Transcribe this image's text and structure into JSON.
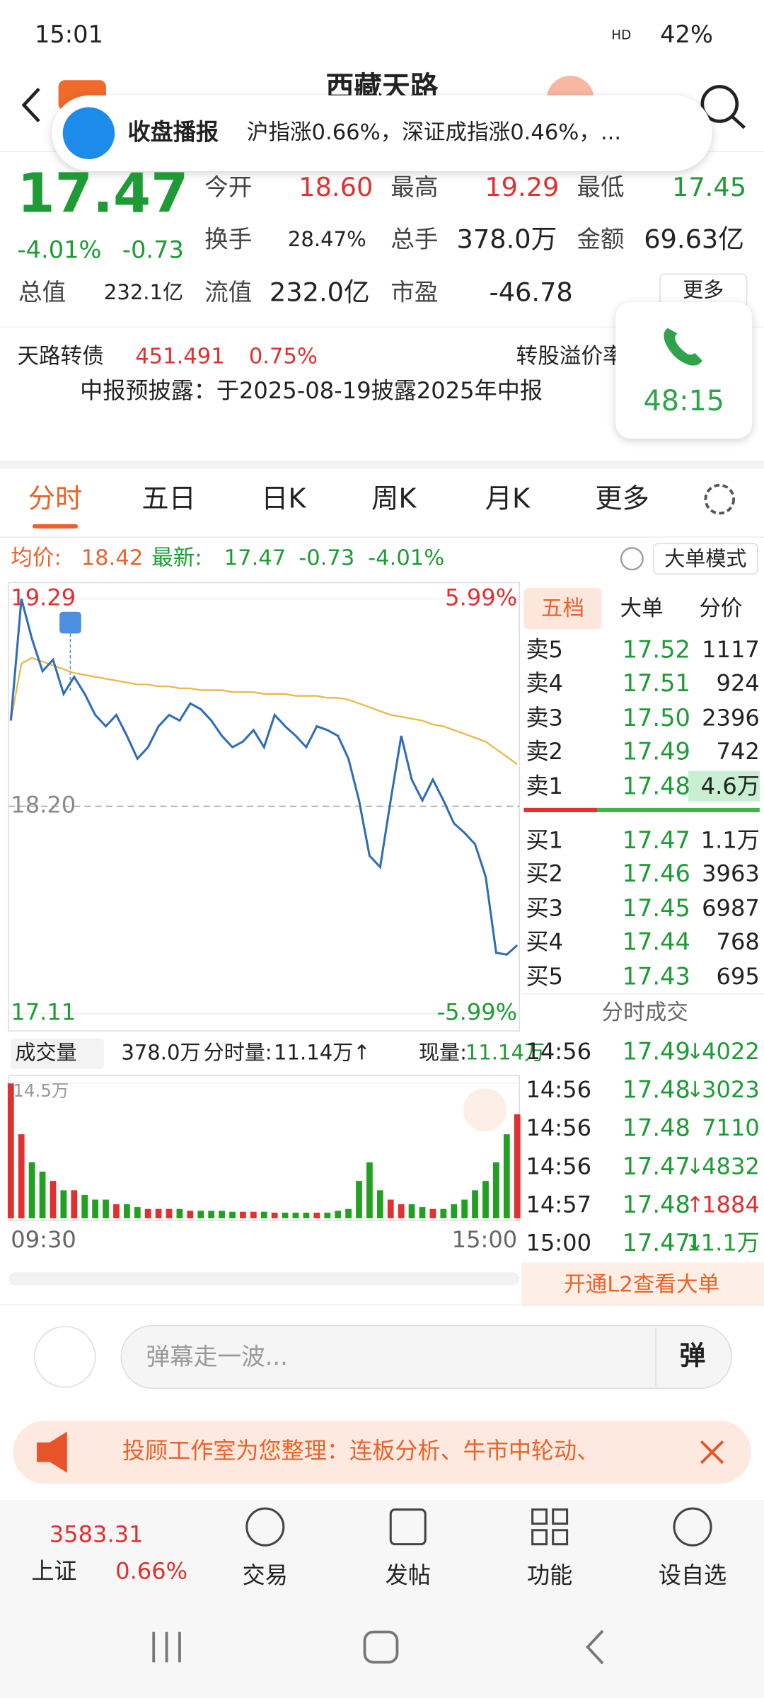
{
  "status_bar": {
    "time": "15:01",
    "network": "HD",
    "battery": "42%"
  },
  "header": {
    "title": "西藏天路"
  },
  "toast": {
    "title": "收盘播报",
    "text": "沪指涨0.66%，深证成指涨0.46%，..."
  },
  "quote": {
    "price": "17.47",
    "change_pct": "-4.01%",
    "change": "-0.73",
    "fields": [
      {
        "label": "今开",
        "value": "18.60"
      },
      {
        "label": "最高",
        "value": "19.29"
      },
      {
        "label": "最低",
        "value": "17.45"
      },
      {
        "label": "换手",
        "value": "28.47%"
      },
      {
        "label": "总手",
        "value": "378.0万"
      },
      {
        "label": "金额",
        "value": "69.63亿"
      },
      {
        "label": "总值",
        "value": "232.1亿"
      },
      {
        "label": "流值",
        "value": "232.0亿"
      },
      {
        "label": "市盈",
        "value": "-46.78"
      }
    ],
    "more": "更多"
  },
  "bond": {
    "name": "天路转债",
    "price": "451.491",
    "change_pct": "0.75%",
    "premium_label": "转股溢价率"
  },
  "call": {
    "duration": "48:15"
  },
  "notice": {
    "text": "中报预披露：于2025-08-19披露2025年中报"
  },
  "tabs": [
    "分时",
    "五日",
    "日K",
    "周K",
    "月K",
    "更多"
  ],
  "chart_info": {
    "avg_label": "均价:",
    "avg": "18.42",
    "latest_label": "最新:",
    "latest": "17.47",
    "change": "-0.73",
    "change_pct": "-4.01%",
    "mode_button": "大单模式"
  },
  "chart_data": [
    {
      "type": "line",
      "x": [
        0,
        5,
        10,
        15,
        20,
        25,
        30,
        35,
        40,
        45,
        50,
        55,
        60,
        65,
        70,
        75,
        80,
        85,
        90,
        95,
        100,
        105,
        110,
        115,
        120,
        125,
        130,
        135,
        140,
        145,
        150,
        155,
        160,
        165,
        170,
        175,
        180,
        185,
        190,
        195,
        200,
        205,
        210,
        215,
        220,
        225,
        230,
        235,
        240
      ],
      "xlim": [
        0,
        240
      ],
      "ylim": [
        17.11,
        19.29
      ],
      "yticks": [
        19.29,
        {
          "value": 18.2,
          "label": "18.20"
        },
        17.11
      ],
      "y2lim": [
        -5.99,
        5.99
      ],
      "y2ticks": [
        {
          "value": 5.99,
          "label": "5.99%"
        },
        {
          "value": -5.99,
          "label": "-5.99%"
        }
      ],
      "series": [
        {
          "color": "#2f6db5",
          "values": [
            18.65,
            19.29,
            19.08,
            18.91,
            18.97,
            18.79,
            18.88,
            18.79,
            18.68,
            18.62,
            18.68,
            18.57,
            18.45,
            18.51,
            18.62,
            18.68,
            18.65,
            18.74,
            18.71,
            18.65,
            18.57,
            18.51,
            18.54,
            18.6,
            18.51,
            18.68,
            18.62,
            18.57,
            18.51,
            18.62,
            18.6,
            18.57,
            18.45,
            18.23,
            17.94,
            17.88,
            18.23,
            18.57,
            18.34,
            18.23,
            18.34,
            18.23,
            18.11,
            18.06,
            18.0,
            17.83,
            17.43,
            17.42,
            17.47
          ]
        },
        {
          "color": "#e8b84a",
          "values": [
            18.65,
            18.95,
            18.98,
            18.96,
            18.94,
            18.92,
            18.9,
            18.89,
            18.88,
            18.87,
            18.86,
            18.85,
            18.84,
            18.84,
            18.83,
            18.83,
            18.82,
            18.82,
            18.81,
            18.81,
            18.81,
            18.8,
            18.8,
            18.8,
            18.79,
            18.79,
            18.79,
            18.78,
            18.78,
            18.78,
            18.77,
            18.77,
            18.76,
            18.74,
            18.72,
            18.7,
            18.68,
            18.67,
            18.66,
            18.65,
            18.63,
            18.62,
            18.6,
            18.58,
            18.56,
            18.54,
            18.5,
            18.46,
            18.42
          ]
        }
      ],
      "grid": true
    },
    {
      "type": "bar",
      "x": [
        0,
        5,
        10,
        15,
        20,
        25,
        30,
        35,
        40,
        45,
        50,
        55,
        60,
        65,
        70,
        75,
        80,
        85,
        90,
        95,
        100,
        105,
        110,
        115,
        120,
        125,
        130,
        135,
        140,
        145,
        150,
        155,
        160,
        165,
        170,
        175,
        180,
        185,
        190,
        195,
        200,
        205,
        210,
        215,
        220,
        225,
        230,
        235,
        240
      ],
      "xlim": [
        0,
        240
      ],
      "xticks": [
        {
          "value": 0,
          "label": "09:30"
        },
        {
          "value": 240,
          "label": "15:00"
        }
      ],
      "ylim": [
        0,
        14.5
      ],
      "yticks": [
        {
          "value": 14.5,
          "label": "14.5万"
        }
      ],
      "values": [
        14.5,
        9,
        6,
        5,
        4,
        3,
        3,
        2.5,
        2,
        2,
        1.5,
        1.5,
        1.2,
        1,
        1,
        1,
        1,
        0.8,
        0.8,
        0.8,
        0.8,
        0.7,
        0.7,
        0.7,
        0.7,
        0.6,
        0.6,
        0.6,
        0.6,
        0.6,
        0.6,
        0.8,
        1,
        4,
        6,
        3,
        2,
        1.5,
        1.5,
        1.2,
        1,
        1,
        1.5,
        2,
        3,
        4,
        6,
        9,
        11.14
      ],
      "up_color": "#e03030",
      "down_color": "#22a022"
    }
  ],
  "volume_info": {
    "label": "成交量",
    "total": "378.0万",
    "minute_label": "分时量:",
    "minute": "11.14万↑",
    "current_label": "现量:",
    "current": "11.14万"
  },
  "order_book": {
    "tabs": [
      "五档",
      "大单",
      "分价"
    ],
    "asks": [
      {
        "label": "卖5",
        "price": "17.52",
        "volume": "1117"
      },
      {
        "label": "卖4",
        "price": "17.51",
        "volume": "924"
      },
      {
        "label": "卖3",
        "price": "17.50",
        "volume": "2396"
      },
      {
        "label": "卖2",
        "price": "17.49",
        "volume": "742"
      },
      {
        "label": "卖1",
        "price": "17.48",
        "volume": "4.6万"
      }
    ],
    "bids": [
      {
        "label": "买1",
        "price": "17.47",
        "volume": "1.1万"
      },
      {
        "label": "买2",
        "price": "17.46",
        "volume": "3963"
      },
      {
        "label": "买3",
        "price": "17.45",
        "volume": "6987"
      },
      {
        "label": "买4",
        "price": "17.44",
        "volume": "768"
      },
      {
        "label": "买5",
        "price": "17.43",
        "volume": "695"
      }
    ]
  },
  "trades": {
    "title": "分时成交",
    "rows": [
      {
        "time": "14:56",
        "price": "17.49",
        "dir": "↓",
        "volume": "4022"
      },
      {
        "time": "14:56",
        "price": "17.48",
        "dir": "↓",
        "volume": "3023"
      },
      {
        "time": "14:56",
        "price": "17.48",
        "volume": "7110"
      },
      {
        "time": "14:56",
        "price": "17.47",
        "dir": "↓",
        "volume": "4832"
      },
      {
        "time": "14:57",
        "price": "17.48",
        "dir": "↑",
        "volume": "1884"
      },
      {
        "time": "15:00",
        "price": "17.47",
        "dir": "↓",
        "volume": "11.1万"
      }
    ],
    "footer": "开通L2查看大单"
  },
  "comment": {
    "placeholder": "弹幕走一波...",
    "button": "弹"
  },
  "banner": {
    "text": "投顾工作室为您整理：连板分析、牛市中轮动、"
  },
  "bottom_nav": {
    "index_value": "3583.31",
    "index_name": "上证",
    "index_change": "0.66%",
    "items": [
      "交易",
      "发帖",
      "功能",
      "设自选"
    ]
  }
}
